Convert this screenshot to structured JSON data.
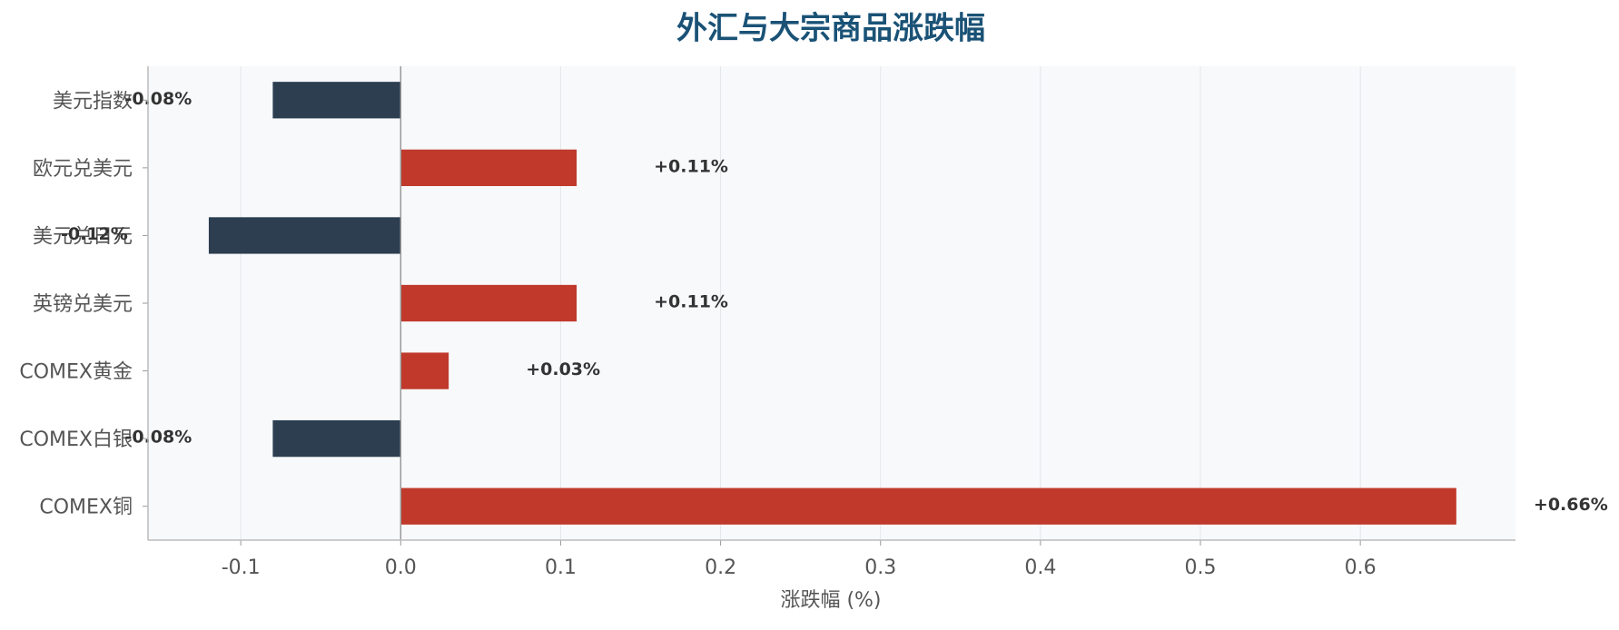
{
  "chart_data": {
    "type": "barh",
    "title": "外汇与大宗商品涨跌幅",
    "xlabel": "涨跌幅 (%)",
    "categories": [
      "美元指数",
      "欧元兑美元",
      "美元兑日元",
      "英镑兑美元",
      "COMEX黄金",
      "COMEX白银",
      "COMEX铜"
    ],
    "values": [
      -0.08,
      0.11,
      -0.12,
      0.11,
      0.03,
      -0.08,
      0.66
    ],
    "value_labels": [
      "-0.08%",
      "+0.11%",
      "-0.12%",
      "+0.11%",
      "+0.03%",
      "-0.08%",
      "+0.66%"
    ],
    "colors": [
      "#2c3e50",
      "#c0392b",
      "#2c3e50",
      "#c0392b",
      "#c0392b",
      "#2c3e50",
      "#c0392b"
    ],
    "xlim": [
      -0.158,
      0.697
    ],
    "xticks": [
      -0.1,
      {
        "value": 0,
        "label": "0.0"
      },
      0.1,
      0.2,
      0.3,
      0.4,
      0.5,
      0.6
    ],
    "grid": true
  }
}
